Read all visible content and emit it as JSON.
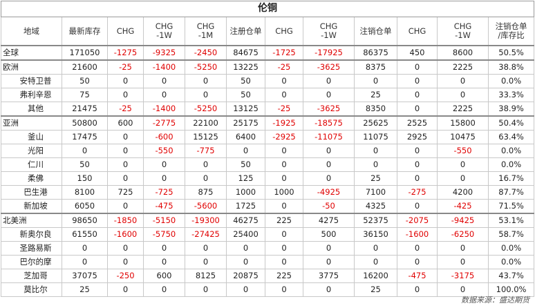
{
  "title": "伦铜",
  "columns": [
    "地域",
    "最新库存",
    "CHG",
    "CHG\n-1W",
    "CHG\n-1M",
    "注册仓单",
    "CHG",
    "CHG\n-1W",
    "注销仓单",
    "CHG",
    "CHG\n-1W",
    "注销仓单\n/库存比"
  ],
  "groups": [
    {
      "rows": [
        {
          "name": "全球",
          "level": "region",
          "values": [
            "171050",
            "-1275",
            "-9325",
            "-2450",
            "84675",
            "-1725",
            "-17925",
            "86375",
            "450",
            "8600",
            "50.5%"
          ]
        }
      ]
    },
    {
      "rows": [
        {
          "name": "欧洲",
          "level": "region",
          "values": [
            "21600",
            "-25",
            "-1400",
            "-5250",
            "13225",
            "-25",
            "-3625",
            "8375",
            "0",
            "2225",
            "38.8%"
          ]
        },
        {
          "name": "安特卫普",
          "level": "sub",
          "values": [
            "50",
            "0",
            "0",
            "0",
            "50",
            "0",
            "0",
            "0",
            "0",
            "0",
            "0.0%"
          ]
        },
        {
          "name": "弗利辛恩",
          "level": "sub",
          "values": [
            "75",
            "0",
            "0",
            "0",
            "50",
            "0",
            "0",
            "25",
            "0",
            "0",
            "33.3%"
          ]
        },
        {
          "name": "其他",
          "level": "sub",
          "values": [
            "21475",
            "-25",
            "-1400",
            "-5250",
            "13125",
            "-25",
            "-3625",
            "8350",
            "0",
            "2225",
            "38.9%"
          ]
        }
      ]
    },
    {
      "rows": [
        {
          "name": "亚洲",
          "level": "region",
          "values": [
            "50800",
            "600",
            "-2775",
            "22100",
            "25175",
            "-1925",
            "-18575",
            "25625",
            "2525",
            "15800",
            "50.4%"
          ]
        },
        {
          "name": "釜山",
          "level": "sub",
          "values": [
            "17475",
            "0",
            "-600",
            "15125",
            "6400",
            "-2925",
            "-11075",
            "11075",
            "2925",
            "10475",
            "63.4%"
          ]
        },
        {
          "name": "光阳",
          "level": "sub",
          "values": [
            "0",
            "0",
            "-550",
            "-775",
            "0",
            "0",
            "0",
            "0",
            "0",
            "-550",
            "0.0%"
          ]
        },
        {
          "name": "仁川",
          "level": "sub",
          "values": [
            "50",
            "0",
            "0",
            "0",
            "50",
            "0",
            "0",
            "0",
            "0",
            "0",
            "0.0%"
          ]
        },
        {
          "name": "柔佛",
          "level": "sub",
          "values": [
            "150",
            "0",
            "0",
            "0",
            "125",
            "0",
            "0",
            "25",
            "0",
            "0",
            "16.7%"
          ]
        },
        {
          "name": "巴生港",
          "level": "sub",
          "values": [
            "8100",
            "725",
            "-725",
            "875",
            "1000",
            "1000",
            "-4925",
            "7100",
            "-275",
            "4200",
            "87.7%"
          ]
        },
        {
          "name": "新加坡",
          "level": "sub",
          "values": [
            "6050",
            "0",
            "-475",
            "-5600",
            "1725",
            "0",
            "-50",
            "4325",
            "0",
            "-425",
            "71.5%"
          ]
        }
      ]
    },
    {
      "rows": [
        {
          "name": "北美洲",
          "level": "region",
          "values": [
            "98650",
            "-1850",
            "-5150",
            "-19300",
            "46275",
            "225",
            "4275",
            "52375",
            "-2075",
            "-9425",
            "53.1%"
          ]
        },
        {
          "name": "新奥尔良",
          "level": "sub",
          "values": [
            "61550",
            "-1600",
            "-5750",
            "-27425",
            "25400",
            "0",
            "500",
            "36150",
            "-1600",
            "-6250",
            "58.7%"
          ]
        },
        {
          "name": "圣路易斯",
          "level": "sub",
          "values": [
            "0",
            "0",
            "0",
            "0",
            "0",
            "0",
            "0",
            "0",
            "0",
            "0",
            "0.0%"
          ]
        },
        {
          "name": "巴尔的摩",
          "level": "sub",
          "values": [
            "0",
            "0",
            "0",
            "0",
            "0",
            "0",
            "0",
            "0",
            "0",
            "0",
            "0.0%"
          ]
        },
        {
          "name": "芝加哥",
          "level": "sub",
          "values": [
            "37075",
            "-250",
            "600",
            "8125",
            "20875",
            "225",
            "3775",
            "16200",
            "-475",
            "-3175",
            "43.7%"
          ]
        },
        {
          "name": "莫比尔",
          "level": "sub",
          "values": [
            "25",
            "0",
            "0",
            "0",
            "0",
            "0",
            "0",
            "25",
            "0",
            "0",
            "100.0%"
          ]
        }
      ]
    }
  ],
  "source": "数据来源：盛达期货",
  "colors": {
    "negative": "#e00000",
    "text": "#222222",
    "border": "#c8c8c8"
  }
}
